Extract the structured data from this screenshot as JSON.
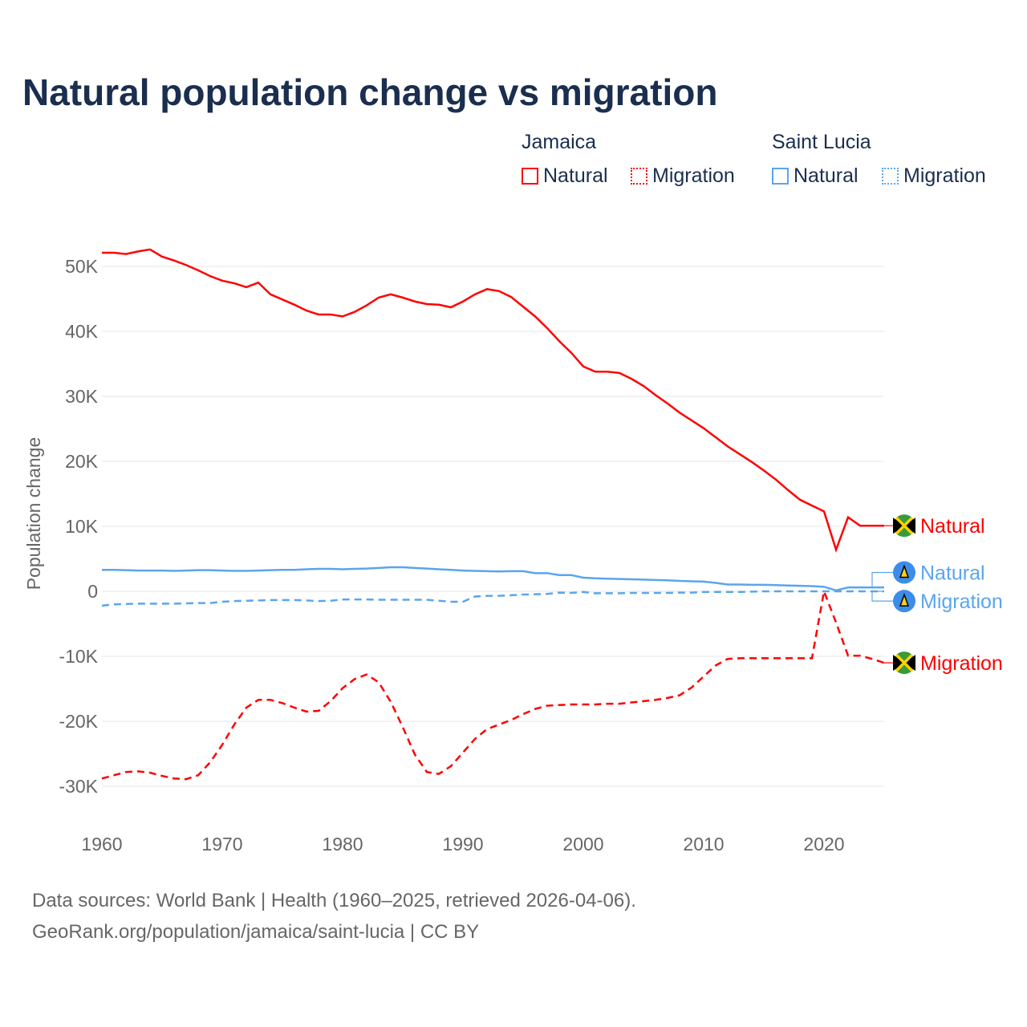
{
  "title": "Natural population change vs migration",
  "legend": {
    "groups": [
      {
        "name": "Jamaica",
        "items": [
          "Natural",
          "Migration"
        ],
        "color": "#ff0000"
      },
      {
        "name": "Saint Lucia",
        "items": [
          "Natural",
          "Migration"
        ],
        "color": "#5aa5ee"
      }
    ]
  },
  "source": [
    "Data sources: World Bank | Health (1960–2025, retrieved 2026-04-06).",
    "GeoRank.org/population/jamaica/saint-lucia | CC BY"
  ],
  "chart_data": {
    "type": "line",
    "title": "Natural population change vs migration",
    "xlabel": "",
    "ylabel": "Population change",
    "xlim": [
      1960,
      2025
    ],
    "ylim": [
      -35000,
      55000
    ],
    "xticks": [
      1960,
      1970,
      1980,
      1990,
      2000,
      2010,
      2020
    ],
    "yticks": [
      {
        "v": 50000,
        "l": "50K"
      },
      {
        "v": 40000,
        "l": "40K"
      },
      {
        "v": 30000,
        "l": "30K"
      },
      {
        "v": 20000,
        "l": "20K"
      },
      {
        "v": 10000,
        "l": "10K"
      },
      {
        "v": 0,
        "l": "0"
      },
      {
        "v": -10000,
        "l": "-10K"
      },
      {
        "v": -20000,
        "l": "-20K"
      },
      {
        "v": -30000,
        "l": "-30K"
      }
    ],
    "x_start": 1960,
    "series": [
      {
        "name": "Natural",
        "country": "Jamaica",
        "color": "#ff0000",
        "dash": false,
        "label_offset": 0,
        "values": [
          52.1,
          52.1,
          51.9,
          52.3,
          52.6,
          51.5,
          50.9,
          50.2,
          49.4,
          48.5,
          47.8,
          47.4,
          46.8,
          47.5,
          45.7,
          44.9,
          44.1,
          43.2,
          42.6,
          42.6,
          42.3,
          43.0,
          44.0,
          45.2,
          45.7,
          45.2,
          44.6,
          44.2,
          44.1,
          43.7,
          44.6,
          45.7,
          46.5,
          46.2,
          45.3,
          43.8,
          42.3,
          40.5,
          38.5,
          36.7,
          34.6,
          33.8,
          33.8,
          33.6,
          32.7,
          31.6,
          30.2,
          28.9,
          27.5,
          26.3,
          25.1,
          23.7,
          22.3,
          21.1,
          19.9,
          18.6,
          17.2,
          15.6,
          14.1,
          13.2,
          12.3,
          6.4,
          11.4,
          10.1,
          10.1,
          10.1
        ]
      },
      {
        "name": "Migration",
        "country": "Jamaica",
        "color": "#ff0000",
        "dash": true,
        "label_offset": 0,
        "values": [
          -28.8,
          -28.3,
          -27.8,
          -27.7,
          -27.9,
          -28.4,
          -28.8,
          -28.9,
          -28.3,
          -26.3,
          -23.6,
          -20.5,
          -17.9,
          -16.7,
          -16.7,
          -17.2,
          -17.9,
          -18.5,
          -18.4,
          -16.9,
          -14.9,
          -13.5,
          -12.8,
          -14.0,
          -17.0,
          -20.9,
          -25.1,
          -27.8,
          -28.1,
          -26.9,
          -24.8,
          -22.7,
          -21.2,
          -20.5,
          -19.8,
          -18.9,
          -18.1,
          -17.6,
          -17.5,
          -17.4,
          -17.4,
          -17.4,
          -17.3,
          -17.3,
          -17.1,
          -16.9,
          -16.7,
          -16.4,
          -16.0,
          -14.8,
          -13.1,
          -11.4,
          -10.4,
          -10.3,
          -10.3,
          -10.3,
          -10.3,
          -10.3,
          -10.3,
          -10.3,
          0,
          -4.8,
          -9.9,
          -9.9,
          -10.4,
          -11.0
        ]
      },
      {
        "name": "Natural",
        "country": "Saint Lucia",
        "color": "#5aa5ee",
        "dash": false,
        "label_offset": 2.3,
        "values": [
          3.3,
          3.3,
          3.25,
          3.2,
          3.2,
          3.2,
          3.15,
          3.2,
          3.25,
          3.25,
          3.2,
          3.15,
          3.15,
          3.2,
          3.25,
          3.3,
          3.3,
          3.4,
          3.45,
          3.45,
          3.4,
          3.45,
          3.5,
          3.6,
          3.7,
          3.7,
          3.6,
          3.5,
          3.4,
          3.3,
          3.2,
          3.15,
          3.1,
          3.05,
          3.1,
          3.1,
          2.8,
          2.8,
          2.5,
          2.5,
          2.1,
          2.0,
          1.95,
          1.9,
          1.85,
          1.8,
          1.75,
          1.7,
          1.6,
          1.55,
          1.5,
          1.3,
          1.05,
          1.05,
          1.0,
          1.0,
          0.95,
          0.9,
          0.85,
          0.8,
          0.7,
          0.15,
          0.6,
          0.6,
          0.6,
          0.6
        ]
      },
      {
        "name": "Migration",
        "country": "Saint Lucia",
        "color": "#5aa5ee",
        "dash": true,
        "label_offset": -1.5,
        "values": [
          -2.2,
          -2.0,
          -1.95,
          -1.9,
          -1.9,
          -1.9,
          -1.9,
          -1.85,
          -1.8,
          -1.8,
          -1.6,
          -1.5,
          -1.45,
          -1.4,
          -1.35,
          -1.35,
          -1.35,
          -1.4,
          -1.5,
          -1.45,
          -1.25,
          -1.25,
          -1.25,
          -1.3,
          -1.3,
          -1.3,
          -1.3,
          -1.3,
          -1.45,
          -1.6,
          -1.6,
          -0.8,
          -0.7,
          -0.7,
          -0.6,
          -0.5,
          -0.45,
          -0.4,
          -0.2,
          -0.25,
          -0.1,
          -0.3,
          -0.3,
          -0.3,
          -0.25,
          -0.25,
          -0.25,
          -0.25,
          -0.2,
          -0.2,
          -0.1,
          -0.1,
          -0.1,
          -0.1,
          -0.05,
          0,
          0,
          0,
          0,
          0,
          0,
          0,
          0,
          0,
          0,
          0
        ]
      }
    ]
  }
}
